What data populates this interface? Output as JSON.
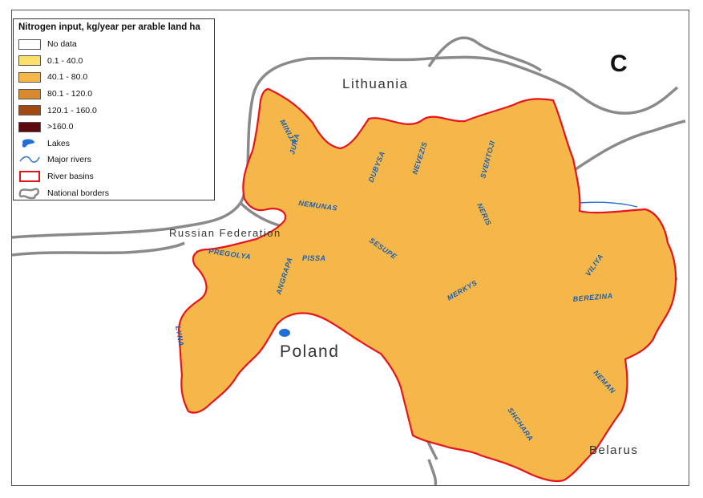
{
  "panel_letter": "C",
  "legend": {
    "title": "Nitrogen input, kg/year per arable land ha",
    "classes": [
      {
        "label": "No data",
        "color": "#ffffff"
      },
      {
        "label": "0.1 - 40.0",
        "color": "#fbe06c"
      },
      {
        "label": "40.1 - 80.0",
        "color": "#f5b64a"
      },
      {
        "label": "80.1 - 120.0",
        "color": "#d88b2e"
      },
      {
        "label": "120.1 - 160.0",
        "color": "#a04a14"
      },
      {
        "label": ">160.0",
        "color": "#5c0a10"
      }
    ],
    "lakes": "Lakes",
    "rivers": "Major rivers",
    "basins": "River basins",
    "borders": "National borders"
  },
  "countries": {
    "lithuania": "Lithuania",
    "russia": "Russian Federation",
    "poland": "Poland",
    "belarus": "Belarus"
  },
  "rivers": {
    "minija": "MINIJA",
    "jura": "JURA",
    "dubysa": "DUBYSA",
    "nevezis": "NEVEZIS",
    "sventoji": "SVENTOJI",
    "nemunas": "NEMUNAS",
    "neris": "NERIS",
    "sesupe": "SESUPE",
    "pregolya": "PREGOLYA",
    "pissa": "PISSA",
    "angrapa": "ANGRAPA",
    "merkys": "MERKYS",
    "viliya": "VILIYA",
    "berezina": "BEREZINA",
    "lyna": "LYNA",
    "neman": "NEMAN",
    "shchara": "SHCHARA"
  },
  "colors": {
    "border": "#888888",
    "basin_outline": "#e8141c",
    "river": "#2a73c8",
    "lake": "#1f6fd6"
  }
}
